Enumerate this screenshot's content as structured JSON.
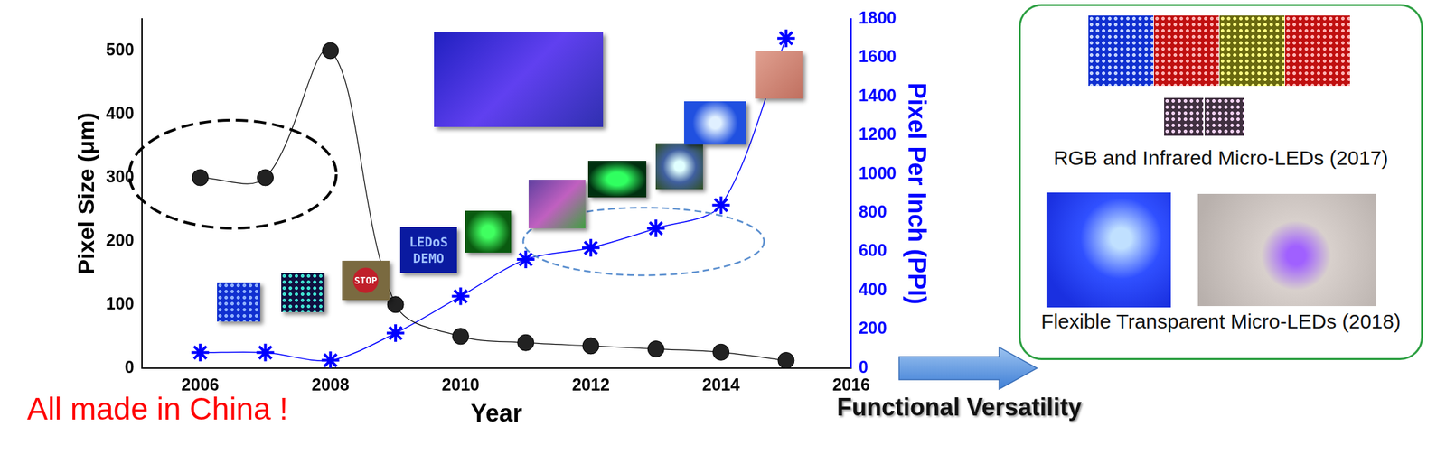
{
  "chart_data": {
    "type": "line",
    "x": [
      2006,
      2007,
      2008,
      2009,
      2010,
      2011,
      2012,
      2013,
      2014,
      2015
    ],
    "xlabel": "Year",
    "ylabel": "Pixel Size (μm)",
    "y2label": "Pixel Per Inch (PPI)",
    "xlim": [
      2005.1,
      2016
    ],
    "xticks": [
      2006,
      2008,
      2010,
      2012,
      2014,
      2016
    ],
    "ylim": [
      0,
      550
    ],
    "yticks": [
      0,
      100,
      200,
      300,
      400,
      500
    ],
    "y2lim": [
      0,
      1800
    ],
    "y2ticks": [
      0,
      200,
      400,
      600,
      800,
      1000,
      1200,
      1400,
      1600,
      1800
    ],
    "grid": false,
    "series": [
      {
        "color": "#000000",
        "marker": "circle",
        "values": [
          300,
          300,
          500,
          100,
          50,
          40,
          35,
          30,
          25,
          12
        ]
      },
      {
        "color": "#0000ff",
        "marker": "star",
        "axis": "y2",
        "values": [
          80,
          80,
          40,
          180,
          370,
          560,
          620,
          720,
          840,
          1700
        ]
      }
    ],
    "annotations": [
      "All made in China !",
      "Functional Versatility"
    ],
    "inset_texts": [
      "STOP",
      "LEDoS DEMO"
    ]
  },
  "panel": {
    "captions": [
      "RGB and Infrared Micro-LEDs (2017)",
      "Flexible Transparent Micro-LEDs (2018)"
    ]
  }
}
